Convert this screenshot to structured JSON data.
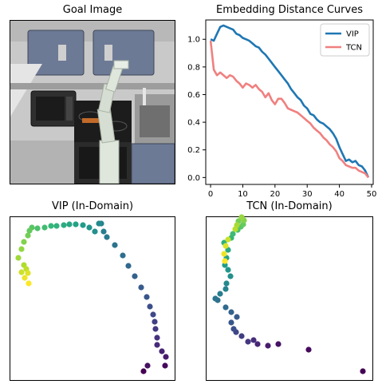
{
  "goal_image": {
    "title": "Goal Image"
  },
  "curves": {
    "title": "Embedding Distance Curves",
    "chart_data": {
      "type": "line",
      "title": "Embedding Distance Curves",
      "xlabel": "",
      "ylabel": "",
      "xlim": [
        -1.5,
        50.5
      ],
      "ylim": [
        -0.05,
        1.14
      ],
      "xticks": [
        0,
        10,
        20,
        30,
        40,
        50
      ],
      "yticks": [
        0.0,
        0.2,
        0.4,
        0.6,
        0.8,
        1.0
      ],
      "legend": "top-right",
      "grid": false,
      "series": [
        {
          "name": "VIP",
          "color": "#1f77b4",
          "x": [
            0,
            1,
            2,
            3,
            4,
            5,
            6,
            7,
            8,
            9,
            10,
            11,
            12,
            13,
            14,
            15,
            16,
            17,
            18,
            19,
            20,
            21,
            22,
            23,
            24,
            25,
            26,
            27,
            28,
            29,
            30,
            31,
            32,
            33,
            34,
            35,
            36,
            37,
            38,
            39,
            40,
            41,
            42,
            43,
            44,
            45,
            46,
            47,
            48,
            49
          ],
          "y": [
            1.0,
            0.99,
            1.04,
            1.09,
            1.1,
            1.09,
            1.08,
            1.07,
            1.04,
            1.03,
            1.01,
            1.0,
            0.99,
            0.97,
            0.95,
            0.94,
            0.91,
            0.89,
            0.86,
            0.83,
            0.8,
            0.77,
            0.74,
            0.71,
            0.68,
            0.64,
            0.61,
            0.58,
            0.56,
            0.52,
            0.5,
            0.46,
            0.45,
            0.42,
            0.4,
            0.39,
            0.37,
            0.35,
            0.32,
            0.28,
            0.22,
            0.17,
            0.12,
            0.13,
            0.11,
            0.12,
            0.09,
            0.08,
            0.05,
            0.0
          ]
        },
        {
          "name": "TCN",
          "color": "#f08080",
          "x": [
            0,
            1,
            2,
            3,
            4,
            5,
            6,
            7,
            8,
            9,
            10,
            11,
            12,
            13,
            14,
            15,
            16,
            17,
            18,
            19,
            20,
            21,
            22,
            23,
            24,
            25,
            26,
            27,
            28,
            29,
            30,
            31,
            32,
            33,
            34,
            35,
            36,
            37,
            38,
            39,
            40,
            41,
            42,
            43,
            44,
            45,
            46,
            47,
            48,
            49
          ],
          "y": [
            0.99,
            0.78,
            0.74,
            0.76,
            0.74,
            0.72,
            0.74,
            0.73,
            0.7,
            0.68,
            0.65,
            0.68,
            0.67,
            0.65,
            0.67,
            0.64,
            0.62,
            0.58,
            0.61,
            0.56,
            0.53,
            0.57,
            0.57,
            0.54,
            0.5,
            0.49,
            0.48,
            0.47,
            0.45,
            0.43,
            0.41,
            0.39,
            0.36,
            0.34,
            0.32,
            0.29,
            0.27,
            0.24,
            0.22,
            0.19,
            0.14,
            0.12,
            0.09,
            0.08,
            0.07,
            0.07,
            0.05,
            0.04,
            0.03,
            0.0
          ]
        }
      ]
    }
  },
  "vip_scatter": {
    "title": "VIP (In-Domain)",
    "chart_data": {
      "type": "scatter",
      "title": "VIP (In-Domain)",
      "colormap": "viridis",
      "axes_visible": false,
      "points": [
        [
          180,
          465
        ],
        [
          207,
          458
        ],
        [
          185,
          458
        ],
        [
          208,
          447
        ],
        [
          203,
          440
        ],
        [
          197,
          432
        ],
        [
          197,
          423
        ],
        [
          195,
          412
        ],
        [
          194,
          403
        ],
        [
          192,
          394
        ],
        [
          188,
          384
        ],
        [
          184,
          372
        ],
        [
          177,
          360
        ],
        [
          169,
          346
        ],
        [
          161,
          333
        ],
        [
          154,
          320
        ],
        [
          144,
          307
        ],
        [
          134,
          297
        ],
        [
          130,
          290
        ],
        [
          127,
          280
        ],
        [
          124,
          280
        ],
        [
          119,
          290
        ],
        [
          112,
          285
        ],
        [
          104,
          282
        ],
        [
          95,
          281
        ],
        [
          87,
          281
        ],
        [
          80,
          282
        ],
        [
          71,
          283
        ],
        [
          64,
          283
        ],
        [
          56,
          285
        ],
        [
          47,
          286
        ],
        [
          40,
          285
        ],
        [
          37,
          289
        ],
        [
          35,
          295
        ],
        [
          30,
          303
        ],
        [
          27,
          312
        ],
        [
          23,
          323
        ],
        [
          30,
          332
        ],
        [
          33,
          337
        ],
        [
          27,
          341
        ],
        [
          35,
          342
        ],
        [
          31,
          348
        ],
        [
          36,
          355
        ]
      ]
    }
  },
  "tcn_scatter": {
    "title": "TCN (In-Domain)",
    "chart_data": {
      "type": "scatter",
      "title": "TCN (In-Domain)",
      "colormap": "viridis",
      "axes_visible": false,
      "points": [
        [
          455,
          465
        ],
        [
          387,
          438
        ],
        [
          349,
          431
        ],
        [
          336,
          433
        ],
        [
          323,
          431
        ],
        [
          318,
          426
        ],
        [
          311,
          428
        ],
        [
          303,
          421
        ],
        [
          296,
          416
        ],
        [
          293,
          412
        ],
        [
          290,
          404
        ],
        [
          297,
          397
        ],
        [
          290,
          391
        ],
        [
          283,
          385
        ],
        [
          273,
          376
        ],
        [
          270,
          374
        ],
        [
          276,
          368
        ],
        [
          283,
          362
        ],
        [
          284,
          355
        ],
        [
          289,
          346
        ],
        [
          286,
          338
        ],
        [
          282,
          332
        ],
        [
          284,
          323
        ],
        [
          286,
          313
        ],
        [
          281,
          304
        ],
        [
          290,
          298
        ],
        [
          292,
          293
        ],
        [
          298,
          288
        ],
        [
          302,
          284
        ],
        [
          305,
          281
        ],
        [
          299,
          277
        ],
        [
          306,
          276
        ],
        [
          303,
          272
        ],
        [
          297,
          282
        ],
        [
          295,
          287
        ],
        [
          286,
          300
        ],
        [
          283,
          308
        ],
        [
          281,
          318
        ],
        [
          282,
          327
        ]
      ]
    }
  },
  "colors": {
    "vip": "#1f77b4",
    "tcn": "#f08080"
  }
}
